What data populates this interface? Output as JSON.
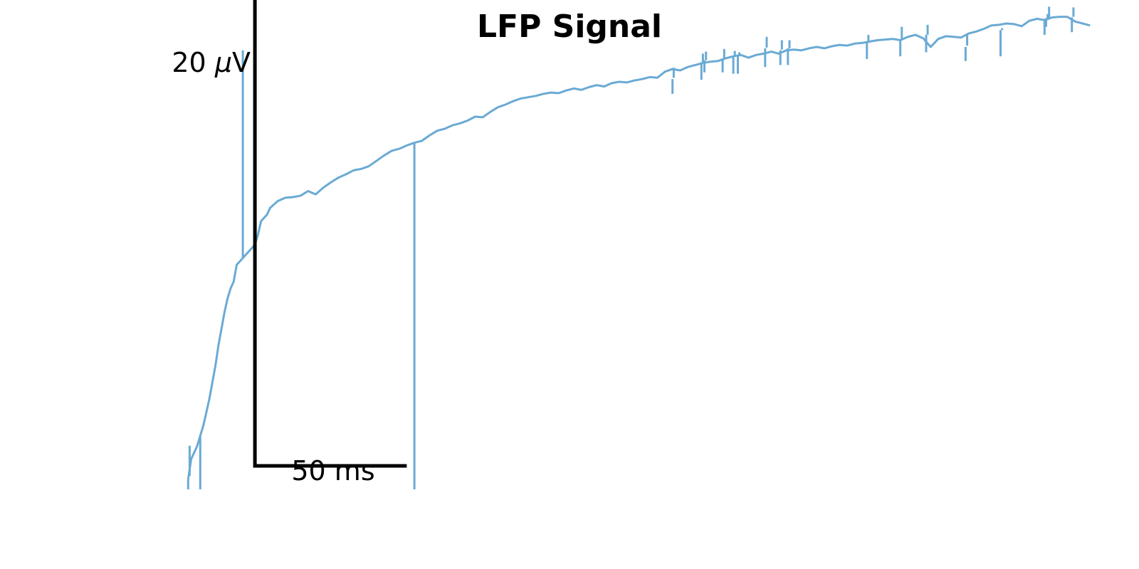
{
  "chart_data": {
    "type": "line",
    "title": "LFP Signal",
    "xlabel": "",
    "ylabel": "",
    "axes_visible": false,
    "grid": false,
    "xlim": [
      -46,
      555
    ],
    "ylim": [
      -26,
      47
    ],
    "scale_bar": {
      "x_label": "50 ms",
      "x_length": 100,
      "y_label_prefix": "20 ",
      "y_label_symbol": "μ",
      "y_label_unit": "V",
      "y_length": 20,
      "color": "#000000"
    },
    "series": [
      {
        "color": "#6aaad4",
        "x": [
          -44,
          -42,
          -40,
          -38,
          -36,
          -34,
          -32,
          -30,
          -28,
          -26,
          -24,
          -22,
          -20,
          -18,
          -16,
          -14,
          -12,
          -10,
          -8,
          -6,
          -4,
          -2,
          0,
          2,
          4,
          6,
          8,
          10,
          15,
          20,
          25,
          30,
          35,
          40,
          45,
          50,
          55,
          60,
          65,
          70,
          75,
          80,
          85,
          90,
          95,
          100,
          105,
          110,
          115,
          120,
          125,
          130,
          135,
          140,
          145,
          150,
          155,
          160,
          165,
          170,
          175,
          180,
          185,
          190,
          195,
          200,
          205,
          210,
          215,
          220,
          225,
          230,
          235,
          240,
          245,
          250,
          255,
          260,
          265,
          270,
          275,
          280,
          285,
          290,
          295,
          300,
          305,
          310,
          315,
          320,
          325,
          330,
          335,
          340,
          345,
          350,
          355,
          360,
          365,
          370,
          375,
          380,
          385,
          390,
          395,
          400,
          405,
          410,
          415,
          420,
          425,
          430,
          435,
          440,
          445,
          450,
          455,
          460,
          465,
          470,
          475,
          480,
          485,
          490,
          495,
          500,
          505,
          510,
          515,
          520,
          525,
          530,
          535,
          540,
          545,
          550
        ],
        "y": [
          -24.5,
          -21.5,
          -20.5,
          -19.5,
          -18.0,
          -16.5,
          -14.5,
          -12.5,
          -10.0,
          -7.5,
          -4.5,
          -2.0,
          0.5,
          2.5,
          4.0,
          5.0,
          7.5,
          8.0,
          8.5,
          9.0,
          9.5,
          10.0,
          10.5,
          12.0,
          14.0,
          14.5,
          15.0,
          16.0,
          17.0,
          17.5,
          17.6,
          17.8,
          18.5,
          18.0,
          19.0,
          19.8,
          20.5,
          21.0,
          21.6,
          21.8,
          22.2,
          23.0,
          23.8,
          24.5,
          24.8,
          25.3,
          25.7,
          26.0,
          26.8,
          27.5,
          27.8,
          28.3,
          28.6,
          29.0,
          29.6,
          29.5,
          30.3,
          31.0,
          31.4,
          31.9,
          32.3,
          32.5,
          32.7,
          33.0,
          33.2,
          33.1,
          33.5,
          33.8,
          33.6,
          34.0,
          34.3,
          34.1,
          34.6,
          34.8,
          34.7,
          35.0,
          35.2,
          35.5,
          35.4,
          36.3,
          36.7,
          36.5,
          37.0,
          37.3,
          37.6,
          37.8,
          37.9,
          38.3,
          38.6,
          38.8,
          38.4,
          38.8,
          39.0,
          39.3,
          39.0,
          39.5,
          39.6,
          39.5,
          39.8,
          40.0,
          39.8,
          40.1,
          40.3,
          40.2,
          40.5,
          40.6,
          40.8,
          41.0,
          41.1,
          41.2,
          41.0,
          41.5,
          41.8,
          41.3,
          40.0,
          41.2,
          41.6,
          41.5,
          41.4,
          42.0,
          42.3,
          42.7,
          43.2,
          43.3,
          43.5,
          43.4,
          43.1,
          43.9,
          44.2,
          44.0,
          44.4,
          44.5,
          44.5,
          43.8,
          43.5,
          43.2
        ]
      }
    ],
    "spikes": [
      {
        "x": -44,
        "y_from": -24.5,
        "y_to": -26.0
      },
      {
        "x": -43,
        "y_from": -24.0,
        "y_to": -19.5
      },
      {
        "x": -36,
        "y_from": -18.0,
        "y_to": -26.0
      },
      {
        "x": -8,
        "y_from": 8.5,
        "y_to": 39.5
      },
      {
        "x": 105,
        "y_from": 25.7,
        "y_to": -26.0
      },
      {
        "x": 275,
        "y_from": 35.2,
        "y_to": 33.0
      },
      {
        "x": 275.8,
        "y_from": 35.4,
        "y_to": 36.9
      },
      {
        "x": 294,
        "y_from": 37.7,
        "y_to": 35.1
      },
      {
        "x": 295,
        "y_from": 37.7,
        "y_to": 39.0
      },
      {
        "x": 296,
        "y_from": 38.0,
        "y_to": 36.2
      },
      {
        "x": 297,
        "y_from": 38.0,
        "y_to": 39.3
      },
      {
        "x": 308,
        "y_from": 38.2,
        "y_to": 36.2
      },
      {
        "x": 309,
        "y_from": 38.3,
        "y_to": 39.7
      },
      {
        "x": 315,
        "y_from": 38.6,
        "y_to": 36.0
      },
      {
        "x": 316,
        "y_from": 38.6,
        "y_to": 39.4
      },
      {
        "x": 318,
        "y_from": 38.7,
        "y_to": 36.0
      },
      {
        "x": 319,
        "y_from": 38.7,
        "y_to": 39.2
      },
      {
        "x": 336,
        "y_from": 39.8,
        "y_to": 37.0
      },
      {
        "x": 337,
        "y_from": 39.9,
        "y_to": 41.5
      },
      {
        "x": 346,
        "y_from": 39.5,
        "y_to": 37.3
      },
      {
        "x": 347,
        "y_from": 39.6,
        "y_to": 41.0
      },
      {
        "x": 351,
        "y_from": 39.8,
        "y_to": 37.3
      },
      {
        "x": 352,
        "y_from": 39.8,
        "y_to": 41.0
      },
      {
        "x": 403,
        "y_from": 40.6,
        "y_to": 38.2
      },
      {
        "x": 404,
        "y_from": 40.7,
        "y_to": 41.8
      },
      {
        "x": 425,
        "y_from": 41.1,
        "y_to": 38.6
      },
      {
        "x": 426,
        "y_from": 41.2,
        "y_to": 43.0
      },
      {
        "x": 442,
        "y_from": 41.8,
        "y_to": 39.2
      },
      {
        "x": 443,
        "y_from": 41.8,
        "y_to": 43.3
      },
      {
        "x": 468,
        "y_from": 40.0,
        "y_to": 37.9
      },
      {
        "x": 469,
        "y_from": 40.2,
        "y_to": 41.9
      },
      {
        "x": 491,
        "y_from": 42.5,
        "y_to": 38.6
      },
      {
        "x": 492,
        "y_from": 42.5,
        "y_to": 42.8
      },
      {
        "x": 520,
        "y_from": 44.2,
        "y_to": 41.8
      },
      {
        "x": 521,
        "y_from": 44.3,
        "y_to": 43.0
      },
      {
        "x": 522,
        "y_from": 44.3,
        "y_to": 44.9
      },
      {
        "x": 523,
        "y_from": 44.3,
        "y_to": 46.0
      },
      {
        "x": 538,
        "y_from": 44.4,
        "y_to": 42.2
      },
      {
        "x": 539,
        "y_from": 44.5,
        "y_to": 45.9
      }
    ]
  }
}
